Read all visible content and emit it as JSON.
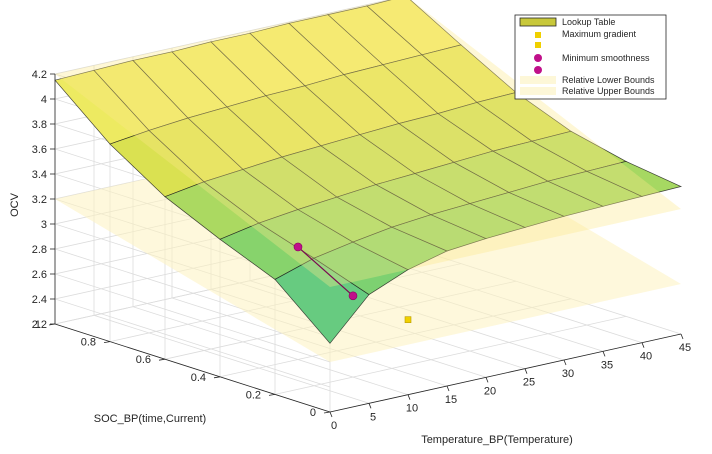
{
  "chart_data": {
    "type": "surface3d",
    "zlabel": "OCV",
    "xlabel": "Temperature_BP(Temperature)",
    "ylabel": "SOC_BP(time,Current)",
    "xlim": [
      0,
      45
    ],
    "ylim": [
      0,
      1
    ],
    "zlim": [
      2.2,
      4.2
    ],
    "x_ticks": [
      "0",
      "5",
      "10",
      "15",
      "20",
      "25",
      "30",
      "35",
      "40",
      "45"
    ],
    "y_ticks": [
      "0",
      "0.2",
      "0.4",
      "0.6",
      "0.8",
      "1"
    ],
    "z_ticks": [
      "2.2",
      "2.4",
      "2.6",
      "2.8",
      "3",
      "3.2",
      "3.4",
      "3.6",
      "3.8",
      "4",
      "4.2"
    ],
    "grid": true,
    "legend_position": "top-right",
    "legend": [
      {
        "label": "Lookup Table",
        "marker": "patch",
        "color": "#c8c83a"
      },
      {
        "label": "Maximum gradient",
        "marker": "square",
        "color": "#f0d000"
      },
      {
        "label": "Minimum smoothness",
        "marker": "circle",
        "color": "#c0108a"
      },
      {
        "label": "Relative Lower Bounds",
        "marker": "patch",
        "color": "#fdf7d8"
      },
      {
        "label": "Relative Upper Bounds",
        "marker": "patch",
        "color": "#fdf7d8"
      }
    ],
    "temperature_bp": [
      0,
      5,
      10,
      15,
      20,
      25,
      30,
      35,
      40,
      45
    ],
    "soc_bp": [
      0,
      0.2,
      0.4,
      0.6,
      0.8,
      1
    ],
    "lookup_table": [
      [
        2.75,
        3.07,
        3.2,
        3.28,
        3.31,
        3.33,
        3.35,
        3.36,
        3.37,
        3.38
      ],
      [
        3.12,
        3.22,
        3.28,
        3.33,
        3.36,
        3.38,
        3.4,
        3.42,
        3.43,
        3.44
      ],
      [
        3.3,
        3.36,
        3.4,
        3.43,
        3.46,
        3.48,
        3.5,
        3.52,
        3.53,
        3.54
      ],
      [
        3.5,
        3.55,
        3.58,
        3.61,
        3.63,
        3.65,
        3.67,
        3.68,
        3.7,
        3.71
      ],
      [
        3.78,
        3.82,
        3.85,
        3.87,
        3.89,
        3.9,
        3.92,
        3.93,
        3.94,
        3.95
      ],
      [
        4.15,
        4.16,
        4.17,
        4.17,
        4.18,
        4.18,
        4.19,
        4.19,
        4.19,
        4.2
      ]
    ],
    "relative_lower_bounds": [
      [
        2.6,
        2.6
      ],
      [
        3.2,
        3.2
      ]
    ],
    "relative_upper_bounds": [
      [
        3.2,
        3.2
      ],
      [
        4.2,
        4.2
      ]
    ],
    "maximum_gradient_points": [
      {
        "x": 10,
        "y": 0.0,
        "z": 2.8
      }
    ],
    "minimum_smoothness_points": [
      {
        "x": 10,
        "y": 0.4,
        "z": 3.1
      },
      {
        "x": 10,
        "y": 0.2,
        "z": 2.85
      }
    ]
  }
}
